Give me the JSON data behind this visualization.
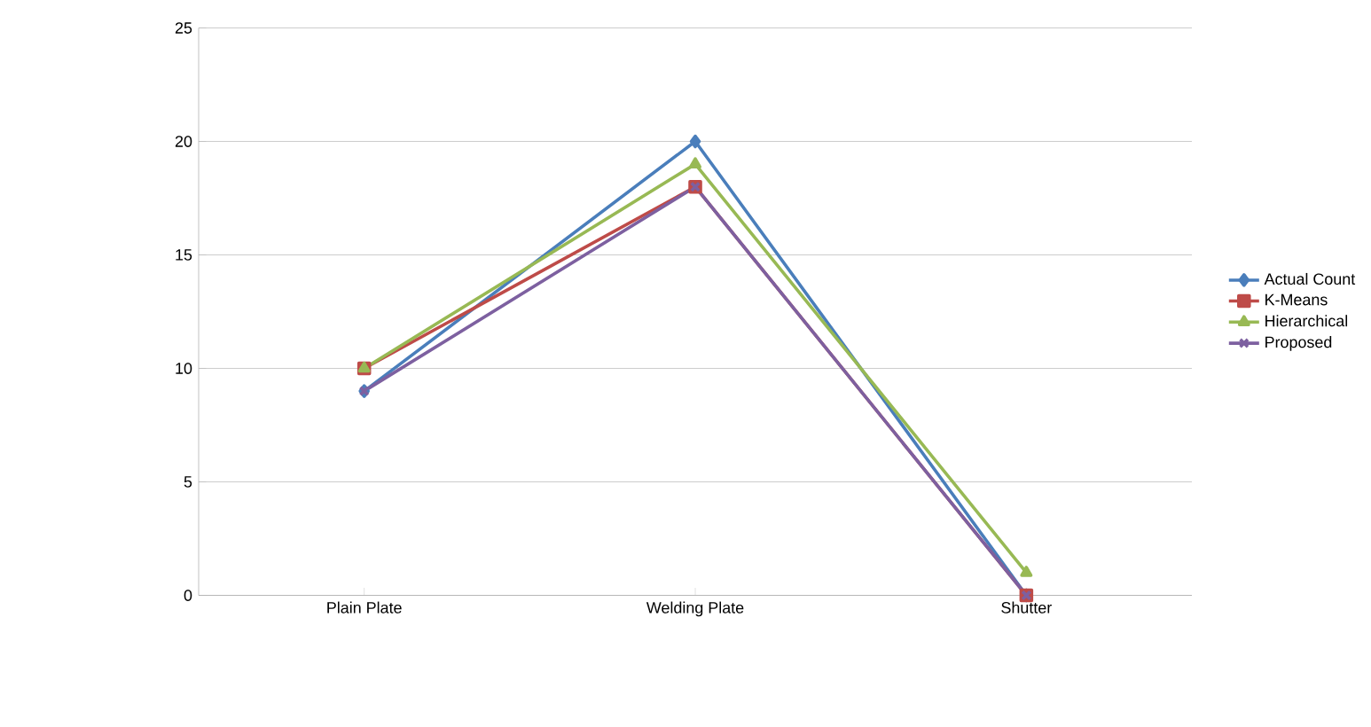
{
  "chart_data": {
    "type": "line",
    "categories": [
      "Plain Plate",
      "Welding Plate",
      "Shutter"
    ],
    "series": [
      {
        "name": "Actual Count",
        "color": "#4a7ebb",
        "marker": "diamond",
        "values": [
          9,
          20,
          0
        ]
      },
      {
        "name": "K-Means",
        "color": "#be4b48",
        "marker": "square",
        "values": [
          10,
          18,
          0
        ]
      },
      {
        "name": "Hierarchical",
        "color": "#98b954",
        "marker": "triangle",
        "values": [
          10,
          19,
          1
        ]
      },
      {
        "name": "Proposed",
        "color": "#7d60a0",
        "marker": "cross",
        "values": [
          9,
          18,
          0
        ]
      }
    ],
    "ylim": [
      0,
      25
    ],
    "yticks": [
      0,
      5,
      10,
      15,
      20,
      25
    ],
    "grid": "y",
    "legend": "right",
    "line_style": "solid"
  }
}
